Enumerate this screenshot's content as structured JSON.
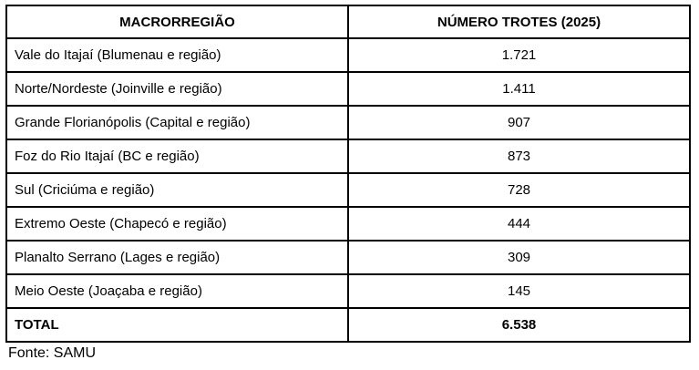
{
  "chart_data": {
    "type": "table",
    "columns": [
      "MACRORREGIÃO",
      "NÚMERO TROTES (2025)"
    ],
    "categories": [
      "Vale do Itajaí (Blumenau e região)",
      "Norte/Nordeste (Joinville e região)",
      "Grande Florianópolis (Capital e região)",
      "Foz do Rio Itajaí (BC e região)",
      "Sul (Criciúma e região)",
      "Extremo Oeste (Chapecó e região)",
      "Planalto Serrano (Lages e região)",
      "Meio Oeste (Joaçaba e região)"
    ],
    "values": [
      1721,
      1411,
      907,
      873,
      728,
      444,
      309,
      145
    ],
    "total": 6538,
    "source": "Fonte: SAMU",
    "layout": {
      "grid": "all-borders",
      "border_color": "#000000",
      "background": "#ffffff",
      "value_alignment": "center",
      "category_alignment": "left"
    }
  },
  "table": {
    "headers": [
      "MACRORREGIÃO",
      "NÚMERO TROTES (2025)"
    ],
    "rows": [
      {
        "region": "Vale do Itajaí (Blumenau e região)",
        "value": "1.721"
      },
      {
        "region": "Norte/Nordeste (Joinville e região)",
        "value": "1.411"
      },
      {
        "region": "Grande Florianópolis (Capital e região)",
        "value": "907"
      },
      {
        "region": "Foz do Rio Itajaí (BC e região)",
        "value": "873"
      },
      {
        "region": "Sul (Criciúma e região)",
        "value": "728"
      },
      {
        "region": "Extremo Oeste (Chapecó e região)",
        "value": "444"
      },
      {
        "region": "Planalto Serrano (Lages e região)",
        "value": "309"
      },
      {
        "region": "Meio Oeste (Joaçaba e região)",
        "value": "145"
      }
    ],
    "total": {
      "label": "TOTAL",
      "value": "6.538"
    }
  },
  "footer": {
    "source": "Fonte: SAMU"
  }
}
